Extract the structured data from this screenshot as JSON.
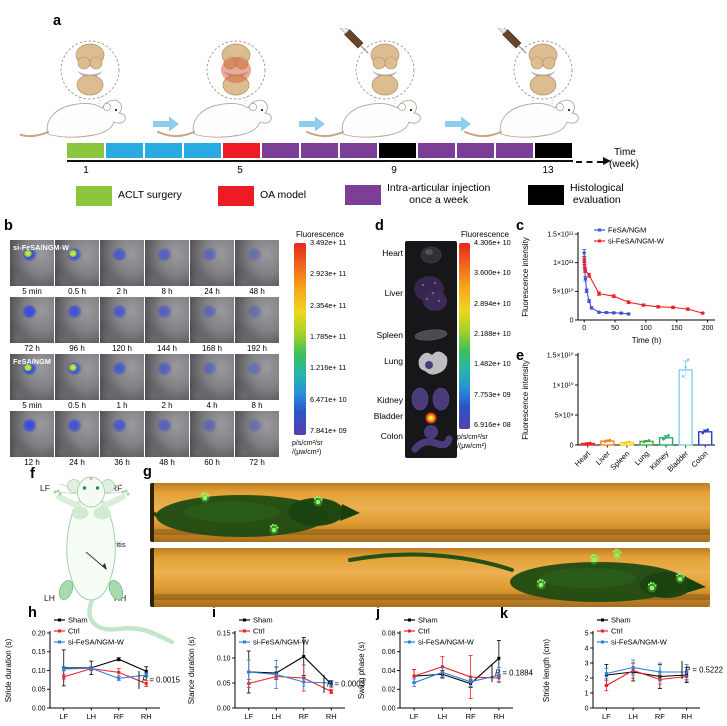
{
  "panel_labels": {
    "a": "a",
    "b": "b",
    "c": "c",
    "d": "d",
    "e": "e",
    "f": "f",
    "g": "g",
    "h": "h",
    "i": "i",
    "j": "j",
    "k": "k"
  },
  "panels": {
    "a": {
      "week_axis": {
        "ticks": [
          "1",
          "5",
          "9",
          "13"
        ],
        "label": "Time",
        "unit": "(week)"
      },
      "timeline_blocks": [
        "green",
        "blue",
        "blue",
        "blue",
        "red",
        "purple",
        "purple",
        "purple",
        "black",
        "purple",
        "purple",
        "purple",
        "black"
      ],
      "block_colors": {
        "green": "#8cc63e",
        "blue": "#29abe2",
        "red": "#ed1c24",
        "purple": "#7b3f98",
        "black": "#000000"
      },
      "legend": [
        {
          "color": "#8cc63e",
          "label": "ACLT surgery"
        },
        {
          "color": "#ed1c24",
          "label": "OA model"
        },
        {
          "color": "#7b3f98",
          "label": "Intra-articular injection\nonce a week"
        },
        {
          "color": "#000000",
          "label": "Histological\nevaluation"
        }
      ]
    },
    "b": {
      "groups": [
        {
          "name": "si-FeSA/NGM-W",
          "rows": [
            [
              "5 min",
              "0.5 h",
              "2 h",
              "8 h",
              "24 h",
              "48 h"
            ],
            [
              "72 h",
              "96 h",
              "120 h",
              "144 h",
              "168 h",
              "192 h"
            ]
          ]
        },
        {
          "name": "FeSA/NGM",
          "rows": [
            [
              "5 min",
              "0.5 h",
              "1 h",
              "2 h",
              "4 h",
              "8 h"
            ],
            [
              "12 h",
              "24 h",
              "36 h",
              "48 h",
              "60 h",
              "72 h"
            ]
          ]
        }
      ],
      "colorbar": {
        "title": "Fluorescence",
        "ticks": [
          "3.492e+ 11",
          "2.923e+ 11",
          "2.354e+ 11",
          "1.785e+ 11",
          "1.216e+ 11",
          "6.471e+ 10",
          "7.841e+ 09"
        ],
        "units": "p/s/cm²/sr\n/(μw/cm²)"
      }
    },
    "d": {
      "organs": [
        "Heart",
        "Liver",
        "Spleen",
        "Lung",
        "Kidney",
        "Bladder",
        "Colon"
      ],
      "colorbar": {
        "title": "Fluorescence",
        "ticks": [
          "4.306e+ 10",
          "3.600e+ 10",
          "2.894e+ 10",
          "2.188e+ 10",
          "1.482e+ 10",
          "7.753e+ 09",
          "6.916e+ 08"
        ],
        "units": "p/s/cm²/sr\n/(μw/cm²)"
      }
    },
    "f": {
      "limbs": {
        "lf": "LF",
        "rf": "RF",
        "lh": "LH",
        "rh": "RH"
      },
      "annotation": "Osteoarthritis"
    }
  },
  "chart_data": [
    {
      "id": "c",
      "type": "line",
      "xlabel": "Time (h)",
      "ylabel": "Fluorescence intensity",
      "xlim": [
        -10,
        212
      ],
      "ylim": [
        0,
        150000000000.0
      ],
      "xticks": [
        0,
        50,
        100,
        150,
        200
      ],
      "yticks": [
        {
          "v": 0,
          "t": "0"
        },
        {
          "v": 50000000000.0,
          "t": "5×10¹⁰"
        },
        {
          "v": 100000000000.0,
          "t": "1×10¹¹"
        },
        {
          "v": 150000000000.0,
          "t": "1.5×10¹¹"
        }
      ],
      "series": [
        {
          "name": "FeSA/NGM",
          "color": "#3f51d6",
          "x": [
            0.08,
            0.5,
            1,
            2,
            4,
            8,
            12,
            24,
            36,
            48,
            60,
            72
          ],
          "y": [
            117000000000.0,
            102000000000.0,
            88000000000.0,
            72000000000.0,
            51000000000.0,
            33000000000.0,
            21000000000.0,
            13500000000.0,
            13000000000.0,
            12500000000.0,
            12000000000.0,
            10500000000.0
          ],
          "err": [
            6000000000.0,
            5000000000.0,
            4000000000.0,
            4000000000.0,
            3000000000.0,
            2500000000.0,
            2000000000.0,
            1500000000.0,
            1500000000.0,
            1500000000.0,
            1500000000.0,
            1500000000.0
          ]
        },
        {
          "name": "si-FeSA/NGM-W",
          "color": "#ed2224",
          "x": [
            0.08,
            0.5,
            2,
            8,
            24,
            48,
            72,
            96,
            120,
            144,
            168,
            192
          ],
          "y": [
            105000000000.0,
            96000000000.0,
            87000000000.0,
            78000000000.0,
            46000000000.0,
            41500000000.0,
            31000000000.0,
            26000000000.0,
            23000000000.0,
            22000000000.0,
            19000000000.0,
            12000000000.0
          ],
          "err": [
            5000000000.0,
            4500000000.0,
            4000000000.0,
            3500000000.0,
            3000000000.0,
            2500000000.0,
            2500000000.0,
            2000000000.0,
            2000000000.0,
            2000000000.0,
            2000000000.0,
            1500000000.0
          ]
        }
      ]
    },
    {
      "id": "e",
      "type": "bar",
      "ylabel": "Fluorescence intensity",
      "ylim": [
        0,
        15000000000.0
      ],
      "yticks": [
        {
          "v": 0,
          "t": "0"
        },
        {
          "v": 5000000000.0,
          "t": "5×10⁹"
        },
        {
          "v": 10000000000.0,
          "t": "1×10¹⁰"
        },
        {
          "v": 15000000000.0,
          "t": "1.5×10¹⁰"
        }
      ],
      "categories": [
        "Heart",
        "Liver",
        "Spleen",
        "Lung",
        "Kidney",
        "Bladder",
        "Colon"
      ],
      "values": [
        250000000.0,
        650000000.0,
        400000000.0,
        600000000.0,
        1200000000.0,
        12500000000.0,
        2200000000.0
      ],
      "errors": [
        80000000.0,
        150000000.0,
        100000000.0,
        150000000.0,
        350000000.0,
        1500000000.0,
        300000000.0
      ],
      "colors": [
        "#e8231f",
        "#f5811f",
        "#f0cf1f",
        "#3fae49",
        "#1fae66",
        "#82d2e3",
        "#2b3fbe"
      ]
    },
    {
      "id": "h",
      "type": "line",
      "ylabel": "Stride duration (s)",
      "ylim": [
        0,
        0.2
      ],
      "categories": [
        "LF",
        "LH",
        "RF",
        "RH"
      ],
      "p_label": "P = 0.0015",
      "yticks": [
        {
          "v": 0,
          "t": "0.00"
        },
        {
          "v": 0.05,
          "t": "0.05"
        },
        {
          "v": 0.1,
          "t": "0.10"
        },
        {
          "v": 0.15,
          "t": "0.15"
        },
        {
          "v": 0.2,
          "t": "0.20"
        }
      ],
      "series": [
        {
          "name": "Sham",
          "color": "#000000",
          "y": [
            0.107,
            0.107,
            0.13,
            0.098
          ],
          "err": [
            0.048,
            0.018,
            0.004,
            0.012
          ]
        },
        {
          "name": "Ctrl",
          "color": "#ed2224",
          "y": [
            0.083,
            0.105,
            0.095,
            0.065
          ],
          "err": [
            0.006,
            0.005,
            0.01,
            0.008
          ]
        },
        {
          "name": "si-FeSA/NGM-W",
          "color": "#2f7fd9",
          "y": [
            0.104,
            0.106,
            0.079,
            0.088
          ],
          "err": [
            0.005,
            0.004,
            0.006,
            0.005
          ]
        }
      ]
    },
    {
      "id": "i",
      "type": "line",
      "ylabel": "Stance duration (s)",
      "ylim": [
        0,
        0.15
      ],
      "categories": [
        "LF",
        "LH",
        "RF",
        "RH"
      ],
      "p_label": "P = 0.0003",
      "yticks": [
        {
          "v": 0,
          "t": "0.00"
        },
        {
          "v": 0.05,
          "t": "0.05"
        },
        {
          "v": 0.1,
          "t": "0.10"
        },
        {
          "v": 0.15,
          "t": "0.15"
        }
      ],
      "series": [
        {
          "name": "Sham",
          "color": "#000000",
          "y": [
            0.072,
            0.07,
            0.103,
            0.048
          ],
          "err": [
            0.042,
            0.012,
            0.038,
            0.006
          ]
        },
        {
          "name": "Ctrl",
          "color": "#ed2224",
          "y": [
            0.049,
            0.063,
            0.06,
            0.033
          ],
          "err": [
            0.008,
            0.006,
            0.026,
            0.004
          ]
        },
        {
          "name": "si-FeSA/NGM-W",
          "color": "#2f7fd9",
          "y": [
            0.072,
            0.067,
            0.052,
            0.05
          ],
          "err": [
            0.024,
            0.028,
            0.008,
            0.005
          ]
        }
      ]
    },
    {
      "id": "j",
      "type": "line",
      "ylabel": "Swing phase (s)",
      "ylim": [
        0,
        0.08
      ],
      "categories": [
        "LF",
        "LH",
        "RF",
        "RH"
      ],
      "p_label": "P = 0.1884",
      "yticks": [
        {
          "v": 0,
          "t": "0.00"
        },
        {
          "v": 0.02,
          "t": "0.02"
        },
        {
          "v": 0.04,
          "t": "0.04"
        },
        {
          "v": 0.06,
          "t": "0.06"
        },
        {
          "v": 0.08,
          "t": "0.08"
        }
      ],
      "series": [
        {
          "name": "Sham",
          "color": "#000000",
          "y": [
            0.034,
            0.036,
            0.026,
            0.053
          ],
          "err": [
            0.007,
            0.004,
            0.004,
            0.019
          ]
        },
        {
          "name": "Ctrl",
          "color": "#ed2224",
          "y": [
            0.034,
            0.044,
            0.033,
            0.032
          ],
          "err": [
            0.007,
            0.011,
            0.023,
            0.004
          ]
        },
        {
          "name": "si-FeSA/NGM-W",
          "color": "#2f7fd9",
          "y": [
            0.027,
            0.038,
            0.028,
            0.035
          ],
          "err": [
            0.004,
            0.005,
            0.005,
            0.008
          ]
        }
      ]
    },
    {
      "id": "k",
      "type": "line",
      "ylabel": "Stride length (cm)",
      "ylim": [
        0,
        5
      ],
      "categories": [
        "LF",
        "LH",
        "RF",
        "RH"
      ],
      "p_label": "P = 0.5222",
      "yticks": [
        {
          "v": 0,
          "t": "0"
        },
        {
          "v": 1,
          "t": "1"
        },
        {
          "v": 2,
          "t": "2"
        },
        {
          "v": 3,
          "t": "3"
        },
        {
          "v": 4,
          "t": "4"
        },
        {
          "v": 5,
          "t": "5"
        }
      ],
      "series": [
        {
          "name": "Sham",
          "color": "#000000",
          "y": [
            2.2,
            2.4,
            2.1,
            2.2
          ],
          "err": [
            0.7,
            0.6,
            0.8,
            0.5
          ]
        },
        {
          "name": "Ctrl",
          "color": "#ed2224",
          "y": [
            1.5,
            2.5,
            1.9,
            2.1
          ],
          "err": [
            0.35,
            0.5,
            0.3,
            0.3
          ]
        },
        {
          "name": "si-FeSA/NGM-W",
          "color": "#2f7fd9",
          "y": [
            2.3,
            2.7,
            2.4,
            2.4
          ],
          "err": [
            0.35,
            0.5,
            0.6,
            0.5
          ]
        }
      ]
    }
  ]
}
